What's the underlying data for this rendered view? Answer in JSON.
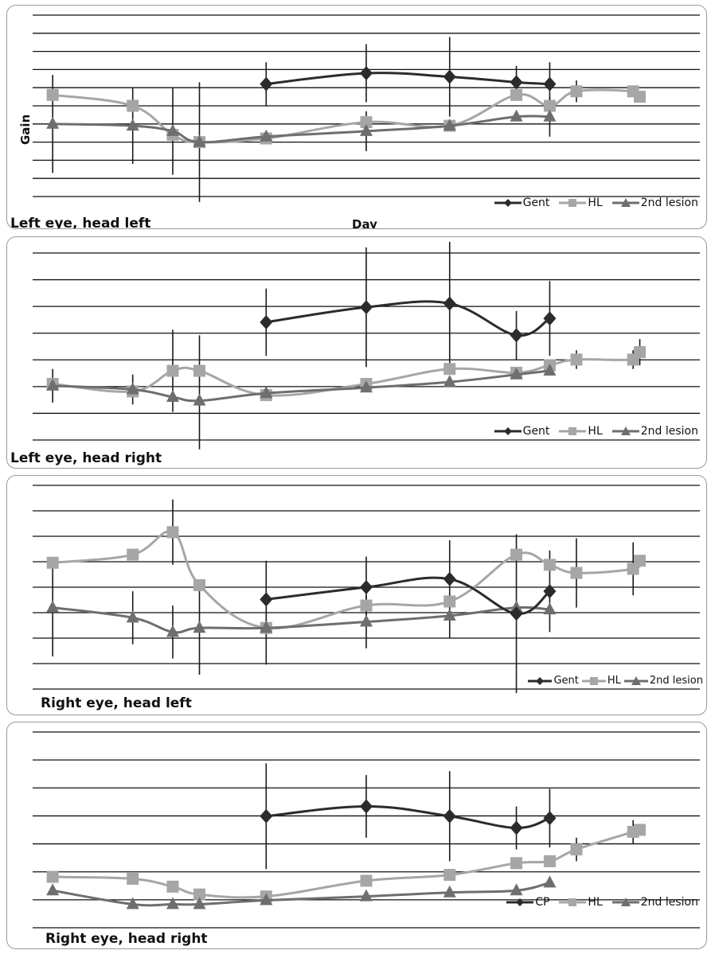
{
  "panels": [
    {
      "title": "Left eye, head left",
      "ylabel": "Gain",
      "xlabel": "Day",
      "legend": [
        "Gent",
        "HL",
        "2nd lesion"
      ]
    },
    {
      "title": "Left eye, head right",
      "ylabel": "",
      "xlabel": "",
      "legend": [
        "Gent",
        "HL",
        "2nd lesion"
      ]
    },
    {
      "title": "Right eye, head left",
      "ylabel": "",
      "xlabel": "",
      "legend": [
        "Gent",
        "HL",
        "2nd lesion"
      ]
    },
    {
      "title": "Right eye, head right",
      "ylabel": "",
      "xlabel": "",
      "legend": [
        "CP",
        "HL",
        "2nd lesion"
      ]
    }
  ],
  "colors": {
    "dark": "#2b2b2b",
    "light": "#a6a6a6",
    "mid": "#6e6e6e",
    "grid": "#111111"
  },
  "chart_data": [
    {
      "type": "line",
      "title": "Left eye, head left",
      "xlabel": "Day",
      "ylabel": "Gain",
      "xlim": [
        0,
        20
      ],
      "ylim": [
        0,
        10
      ],
      "grid": true,
      "legend_position": "bottom-right",
      "series": [
        {
          "name": "Gent",
          "marker": "diamond",
          "points": [
            {
              "x": 7,
              "y": 6.2,
              "e": 1.2
            },
            {
              "x": 10,
              "y": 6.8,
              "e": 1.6
            },
            {
              "x": 12.5,
              "y": 6.6,
              "e": 2.2
            },
            {
              "x": 14.5,
              "y": 6.3,
              "e": 0.9
            },
            {
              "x": 15.5,
              "y": 6.2,
              "e": 1.2
            }
          ]
        },
        {
          "name": "HL",
          "marker": "square",
          "points": [
            {
              "x": 0.6,
              "y": 5.6,
              "e": 0
            },
            {
              "x": 3,
              "y": 5.0,
              "e": 0
            },
            {
              "x": 4.2,
              "y": 3.4,
              "e": 0
            },
            {
              "x": 5,
              "y": 3.0,
              "e": 0
            },
            {
              "x": 7,
              "y": 3.2,
              "e": 0
            },
            {
              "x": 10,
              "y": 4.1,
              "e": 0
            },
            {
              "x": 12.5,
              "y": 3.9,
              "e": 0
            },
            {
              "x": 14.5,
              "y": 5.6,
              "e": 0
            },
            {
              "x": 15.5,
              "y": 5.0,
              "e": 0
            },
            {
              "x": 16.3,
              "y": 5.8,
              "e": 0.6
            },
            {
              "x": 18,
              "y": 5.8,
              "e": 0
            },
            {
              "x": 18.2,
              "y": 5.5,
              "e": 0
            }
          ]
        },
        {
          "name": "2nd lesion",
          "marker": "triangle",
          "points": [
            {
              "x": 0.6,
              "y": 4.0,
              "e": 2.7
            },
            {
              "x": 3,
              "y": 3.9,
              "e": 2.1
            },
            {
              "x": 4.2,
              "y": 3.6,
              "e": 2.4
            },
            {
              "x": 5,
              "y": 3.0,
              "e": 3.3
            },
            {
              "x": 7,
              "y": 3.3,
              "e": 0
            },
            {
              "x": 10,
              "y": 3.6,
              "e": 1.1
            },
            {
              "x": 12.5,
              "y": 3.9,
              "e": 0
            },
            {
              "x": 14.5,
              "y": 4.4,
              "e": 0
            },
            {
              "x": 15.5,
              "y": 4.4,
              "e": 1.1
            }
          ]
        }
      ]
    },
    {
      "type": "line",
      "title": "Left eye, head right",
      "xlim": [
        0,
        20
      ],
      "ylim": [
        0,
        10
      ],
      "grid": true,
      "legend_position": "bottom-right",
      "series": [
        {
          "name": "Gent",
          "marker": "diamond",
          "points": [
            {
              "x": 7,
              "y": 6.3,
              "e": 1.8
            },
            {
              "x": 10,
              "y": 7.1,
              "e": 3.2
            },
            {
              "x": 12.5,
              "y": 7.3,
              "e": 3.3
            },
            {
              "x": 14.5,
              "y": 5.6,
              "e": 1.3
            },
            {
              "x": 15.5,
              "y": 6.5,
              "e": 2.0
            }
          ]
        },
        {
          "name": "HL",
          "marker": "square",
          "points": [
            {
              "x": 0.6,
              "y": 3.0,
              "e": 0
            },
            {
              "x": 3,
              "y": 2.6,
              "e": 0
            },
            {
              "x": 4.2,
              "y": 3.7,
              "e": 2.2
            },
            {
              "x": 5,
              "y": 3.7,
              "e": 0
            },
            {
              "x": 7,
              "y": 2.4,
              "e": 0
            },
            {
              "x": 10,
              "y": 3.0,
              "e": 0
            },
            {
              "x": 12.5,
              "y": 3.8,
              "e": 0
            },
            {
              "x": 14.5,
              "y": 3.6,
              "e": 0
            },
            {
              "x": 15.5,
              "y": 4.0,
              "e": 0
            },
            {
              "x": 16.3,
              "y": 4.3,
              "e": 0.5
            },
            {
              "x": 18,
              "y": 4.3,
              "e": 0.5
            },
            {
              "x": 18.2,
              "y": 4.7,
              "e": 0.7
            }
          ]
        },
        {
          "name": "2nd lesion",
          "marker": "triangle",
          "points": [
            {
              "x": 0.6,
              "y": 2.9,
              "e": 0.9
            },
            {
              "x": 3,
              "y": 2.7,
              "e": 0.8
            },
            {
              "x": 4.2,
              "y": 2.3,
              "e": 0
            },
            {
              "x": 5,
              "y": 2.1,
              "e": 3.5
            },
            {
              "x": 7,
              "y": 2.5,
              "e": 0
            },
            {
              "x": 10,
              "y": 2.8,
              "e": 0
            },
            {
              "x": 12.5,
              "y": 3.1,
              "e": 0
            },
            {
              "x": 14.5,
              "y": 3.5,
              "e": 0
            },
            {
              "x": 15.5,
              "y": 3.7,
              "e": 0
            }
          ]
        }
      ]
    },
    {
      "type": "line",
      "title": "Right eye, head left",
      "xlim": [
        0,
        20
      ],
      "ylim": [
        0,
        10
      ],
      "grid": true,
      "legend_position": "bottom-right",
      "series": [
        {
          "name": "Gent",
          "marker": "diamond",
          "points": [
            {
              "x": 7,
              "y": 4.4,
              "e": 1.9
            },
            {
              "x": 10,
              "y": 5.0,
              "e": 1.5
            },
            {
              "x": 12.5,
              "y": 5.4,
              "e": 1.9
            },
            {
              "x": 14.5,
              "y": 3.7,
              "e": 3.9
            },
            {
              "x": 15.5,
              "y": 4.8,
              "e": 2.0
            }
          ]
        },
        {
          "name": "HL",
          "marker": "square",
          "points": [
            {
              "x": 0.6,
              "y": 6.2,
              "e": 0
            },
            {
              "x": 3,
              "y": 6.6,
              "e": 0
            },
            {
              "x": 4.2,
              "y": 7.7,
              "e": 1.6
            },
            {
              "x": 5,
              "y": 5.1,
              "e": 0
            },
            {
              "x": 7,
              "y": 3.0,
              "e": 0
            },
            {
              "x": 10,
              "y": 4.1,
              "e": 0
            },
            {
              "x": 12.5,
              "y": 4.3,
              "e": 0
            },
            {
              "x": 14.5,
              "y": 6.6,
              "e": 0
            },
            {
              "x": 15.5,
              "y": 6.1,
              "e": 0
            },
            {
              "x": 16.3,
              "y": 5.7,
              "e": 1.7
            },
            {
              "x": 18,
              "y": 5.9,
              "e": 1.3
            },
            {
              "x": 18.2,
              "y": 6.3,
              "e": 0
            }
          ]
        },
        {
          "name": "2nd lesion",
          "marker": "triangle",
          "points": [
            {
              "x": 0.6,
              "y": 4.0,
              "e": 2.4
            },
            {
              "x": 3,
              "y": 3.5,
              "e": 1.3
            },
            {
              "x": 4.2,
              "y": 2.8,
              "e": 1.3
            },
            {
              "x": 5,
              "y": 3.0,
              "e": 2.3
            },
            {
              "x": 7,
              "y": 3.0,
              "e": 1.8
            },
            {
              "x": 10,
              "y": 3.3,
              "e": 1.3
            },
            {
              "x": 12.5,
              "y": 3.6,
              "e": 1.1
            },
            {
              "x": 14.5,
              "y": 4.0,
              "e": 0
            },
            {
              "x": 15.5,
              "y": 3.9,
              "e": 0
            }
          ]
        }
      ]
    },
    {
      "type": "line",
      "title": "Right eye, head right",
      "xlim": [
        0,
        20
      ],
      "ylim": [
        0,
        10
      ],
      "grid": true,
      "legend_position": "bottom-right",
      "series": [
        {
          "name": "CP",
          "marker": "diamond",
          "points": [
            {
              "x": 7,
              "y": 5.7,
              "e": 2.7
            },
            {
              "x": 10,
              "y": 6.2,
              "e": 1.6
            },
            {
              "x": 12.5,
              "y": 5.7,
              "e": 2.3
            },
            {
              "x": 14.5,
              "y": 5.1,
              "e": 1.1
            },
            {
              "x": 15.5,
              "y": 5.6,
              "e": 1.5
            }
          ]
        },
        {
          "name": "HL",
          "marker": "square",
          "points": [
            {
              "x": 0.6,
              "y": 2.6,
              "e": 0
            },
            {
              "x": 3,
              "y": 2.5,
              "e": 0
            },
            {
              "x": 4.2,
              "y": 2.1,
              "e": 0
            },
            {
              "x": 5,
              "y": 1.7,
              "e": 0
            },
            {
              "x": 7,
              "y": 1.6,
              "e": 0
            },
            {
              "x": 10,
              "y": 2.4,
              "e": 0
            },
            {
              "x": 12.5,
              "y": 2.7,
              "e": 0
            },
            {
              "x": 14.5,
              "y": 3.3,
              "e": 0
            },
            {
              "x": 15.5,
              "y": 3.4,
              "e": 0
            },
            {
              "x": 16.3,
              "y": 4.0,
              "e": 0.6
            },
            {
              "x": 18,
              "y": 4.9,
              "e": 0.6
            },
            {
              "x": 18.2,
              "y": 5.0,
              "e": 0
            }
          ]
        },
        {
          "name": "2nd lesion",
          "marker": "triangle",
          "points": [
            {
              "x": 0.6,
              "y": 1.9,
              "e": 0
            },
            {
              "x": 3,
              "y": 1.2,
              "e": 0
            },
            {
              "x": 4.2,
              "y": 1.2,
              "e": 0
            },
            {
              "x": 5,
              "y": 1.2,
              "e": 0
            },
            {
              "x": 7,
              "y": 1.4,
              "e": 0
            },
            {
              "x": 10,
              "y": 1.6,
              "e": 0
            },
            {
              "x": 12.5,
              "y": 1.8,
              "e": 0
            },
            {
              "x": 14.5,
              "y": 1.9,
              "e": 0
            },
            {
              "x": 15.5,
              "y": 2.3,
              "e": 0
            }
          ]
        }
      ]
    }
  ]
}
